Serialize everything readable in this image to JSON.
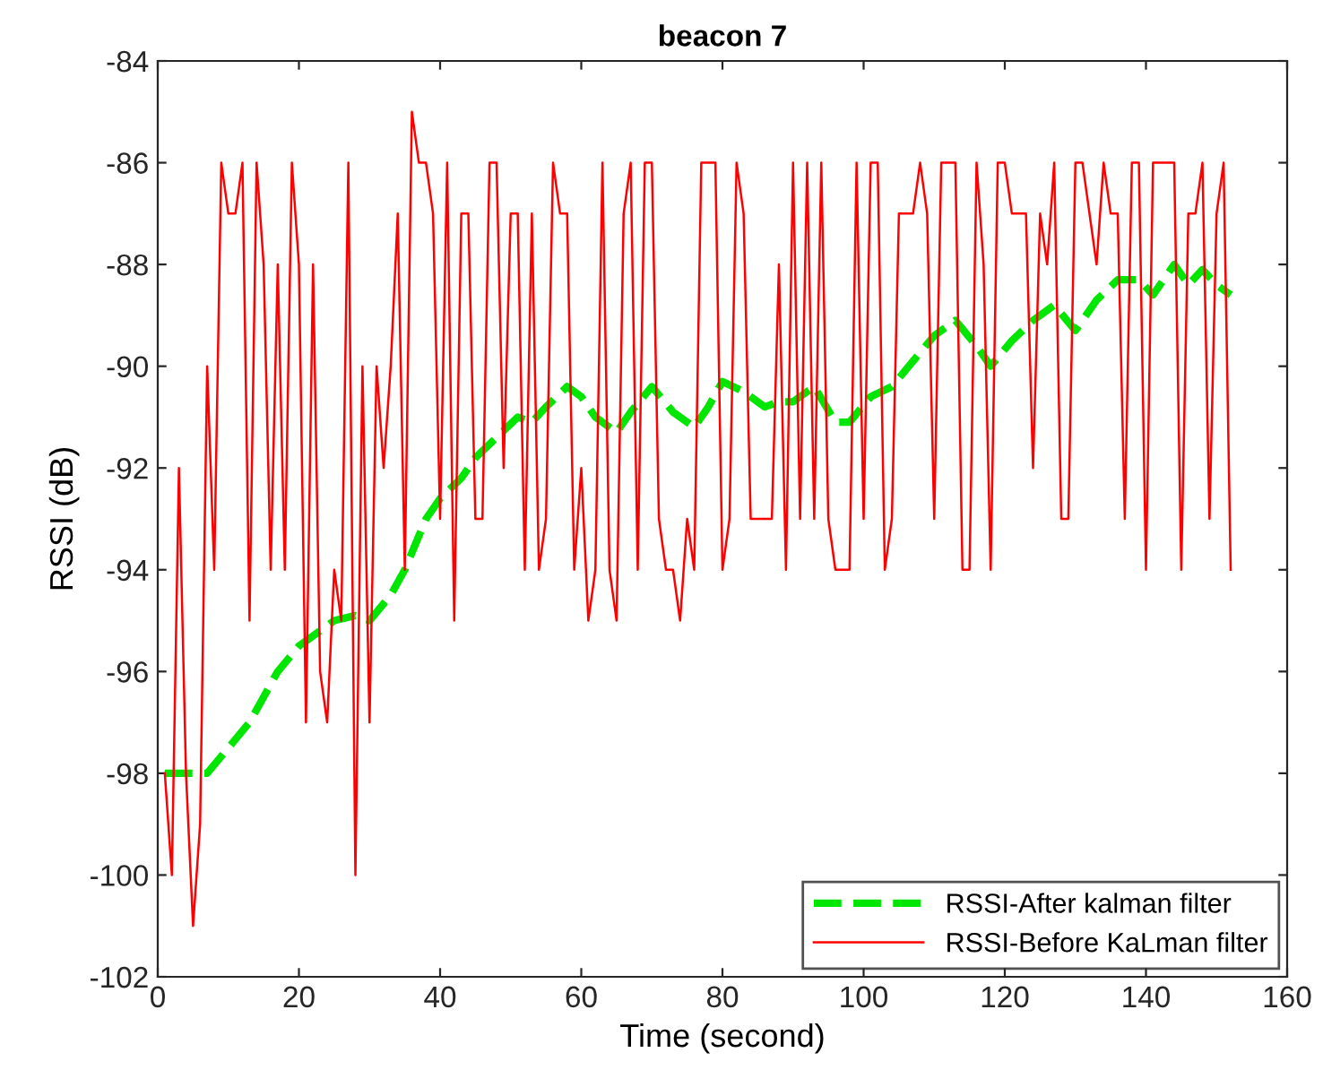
{
  "chart_data": {
    "type": "line",
    "title": "beacon 7",
    "xlabel": "Time (second)",
    "ylabel": "RSSI (dB)",
    "xlim": [
      0,
      160
    ],
    "xticks": [
      0,
      20,
      40,
      60,
      80,
      100,
      120,
      140,
      160
    ],
    "ylim": [
      -102,
      -84
    ],
    "yticks": [
      -102,
      -100,
      -98,
      -96,
      -94,
      -92,
      -90,
      -88,
      -86,
      -84
    ],
    "grid": false,
    "legend": "bottom right",
    "series": [
      {
        "name": "RSSI-After kalman filter",
        "color": "#00e600",
        "line_style": "dashed",
        "x": [
          1,
          5,
          7,
          10,
          13,
          15,
          17,
          20,
          22,
          25,
          28,
          30,
          33,
          35,
          38,
          40,
          43,
          45,
          48,
          51,
          53,
          55,
          58,
          60,
          62,
          65,
          67,
          70,
          73,
          76,
          78,
          80,
          83,
          86,
          88,
          90,
          93,
          96,
          98,
          101,
          104,
          107,
          110,
          113,
          116,
          118,
          121,
          124,
          127,
          130,
          133,
          136,
          139,
          141,
          144,
          146,
          148,
          150,
          152
        ],
        "values": [
          -98,
          -98,
          -98,
          -97.5,
          -97,
          -96.5,
          -96,
          -95.5,
          -95.3,
          -95,
          -94.9,
          -95,
          -94.5,
          -94,
          -93,
          -92.6,
          -92.2,
          -91.8,
          -91.4,
          -91,
          -91.1,
          -90.8,
          -90.4,
          -90.6,
          -91,
          -91.3,
          -90.9,
          -90.4,
          -90.9,
          -91.2,
          -90.8,
          -90.3,
          -90.5,
          -90.8,
          -90.7,
          -90.7,
          -90.4,
          -91.1,
          -91.1,
          -90.6,
          -90.4,
          -89.9,
          -89.4,
          -89.1,
          -89.6,
          -90,
          -89.5,
          -89.1,
          -88.8,
          -89.3,
          -88.7,
          -88.3,
          -88.3,
          -88.6,
          -88,
          -88.4,
          -88.1,
          -88.4,
          -88.6
        ]
      },
      {
        "name": "RSSI-Before KaLman filter",
        "color": "#ff0000",
        "line_style": "solid",
        "x": [
          1,
          2,
          3,
          4,
          5,
          6,
          7,
          8,
          9,
          10,
          11,
          12,
          13,
          14,
          15,
          16,
          17,
          18,
          19,
          20,
          21,
          22,
          23,
          24,
          25,
          26,
          27,
          28,
          29,
          30,
          31,
          32,
          33,
          34,
          35,
          36,
          37,
          38,
          39,
          40,
          41,
          42,
          43,
          44,
          45,
          46,
          47,
          48,
          49,
          50,
          51,
          52,
          53,
          54,
          55,
          56,
          57,
          58,
          59,
          60,
          61,
          62,
          63,
          64,
          65,
          66,
          67,
          68,
          69,
          70,
          71,
          72,
          73,
          74,
          75,
          76,
          77,
          78,
          79,
          80,
          81,
          82,
          83,
          84,
          85,
          86,
          87,
          88,
          89,
          90,
          91,
          92,
          93,
          94,
          95,
          96,
          97,
          98,
          99,
          100,
          101,
          102,
          103,
          104,
          105,
          106,
          107,
          108,
          109,
          110,
          111,
          112,
          113,
          114,
          115,
          116,
          117,
          118,
          119,
          120,
          121,
          122,
          123,
          124,
          125,
          126,
          127,
          128,
          129,
          130,
          131,
          132,
          133,
          134,
          135,
          136,
          137,
          138,
          139,
          140,
          141,
          142,
          143,
          144,
          145,
          146,
          147,
          148,
          149,
          150,
          151,
          152
        ],
        "values": [
          -98,
          -100,
          -92,
          -98,
          -101,
          -99,
          -90,
          -94,
          -86,
          -87,
          -87,
          -86,
          -95,
          -86,
          -88,
          -94,
          -88,
          -94,
          -86,
          -88,
          -97,
          -88,
          -96,
          -97,
          -94,
          -95,
          -86,
          -100,
          -90,
          -97,
          -90,
          -92,
          -90,
          -87,
          -94,
          -85,
          -86,
          -86,
          -87,
          -93,
          -86,
          -95,
          -87,
          -87,
          -93,
          -93,
          -86,
          -86,
          -92,
          -87,
          -87,
          -94,
          -87,
          -94,
          -93,
          -86,
          -87,
          -87,
          -94,
          -92,
          -95,
          -94,
          -86,
          -94,
          -95,
          -87,
          -86,
          -94,
          -86,
          -86,
          -93,
          -94,
          -94,
          -95,
          -93,
          -94,
          -86,
          -86,
          -86,
          -94,
          -93,
          -86,
          -87,
          -93,
          -93,
          -93,
          -93,
          -88,
          -94,
          -86,
          -93,
          -86,
          -93,
          -86,
          -93,
          -94,
          -94,
          -94,
          -86,
          -93,
          -86,
          -86,
          -94,
          -93,
          -87,
          -87,
          -87,
          -86,
          -87,
          -93,
          -86,
          -86,
          -86,
          -94,
          -94,
          -86,
          -88,
          -94,
          -86,
          -86,
          -87,
          -87,
          -87,
          -92,
          -87,
          -88,
          -86,
          -93,
          -93,
          -86,
          -86,
          -87,
          -88,
          -86,
          -87,
          -87,
          -93,
          -86,
          -86,
          -94,
          -86,
          -86,
          -86,
          -86,
          -94,
          -87,
          -87,
          -86,
          -93,
          -87,
          -86,
          -94
        ]
      }
    ]
  }
}
